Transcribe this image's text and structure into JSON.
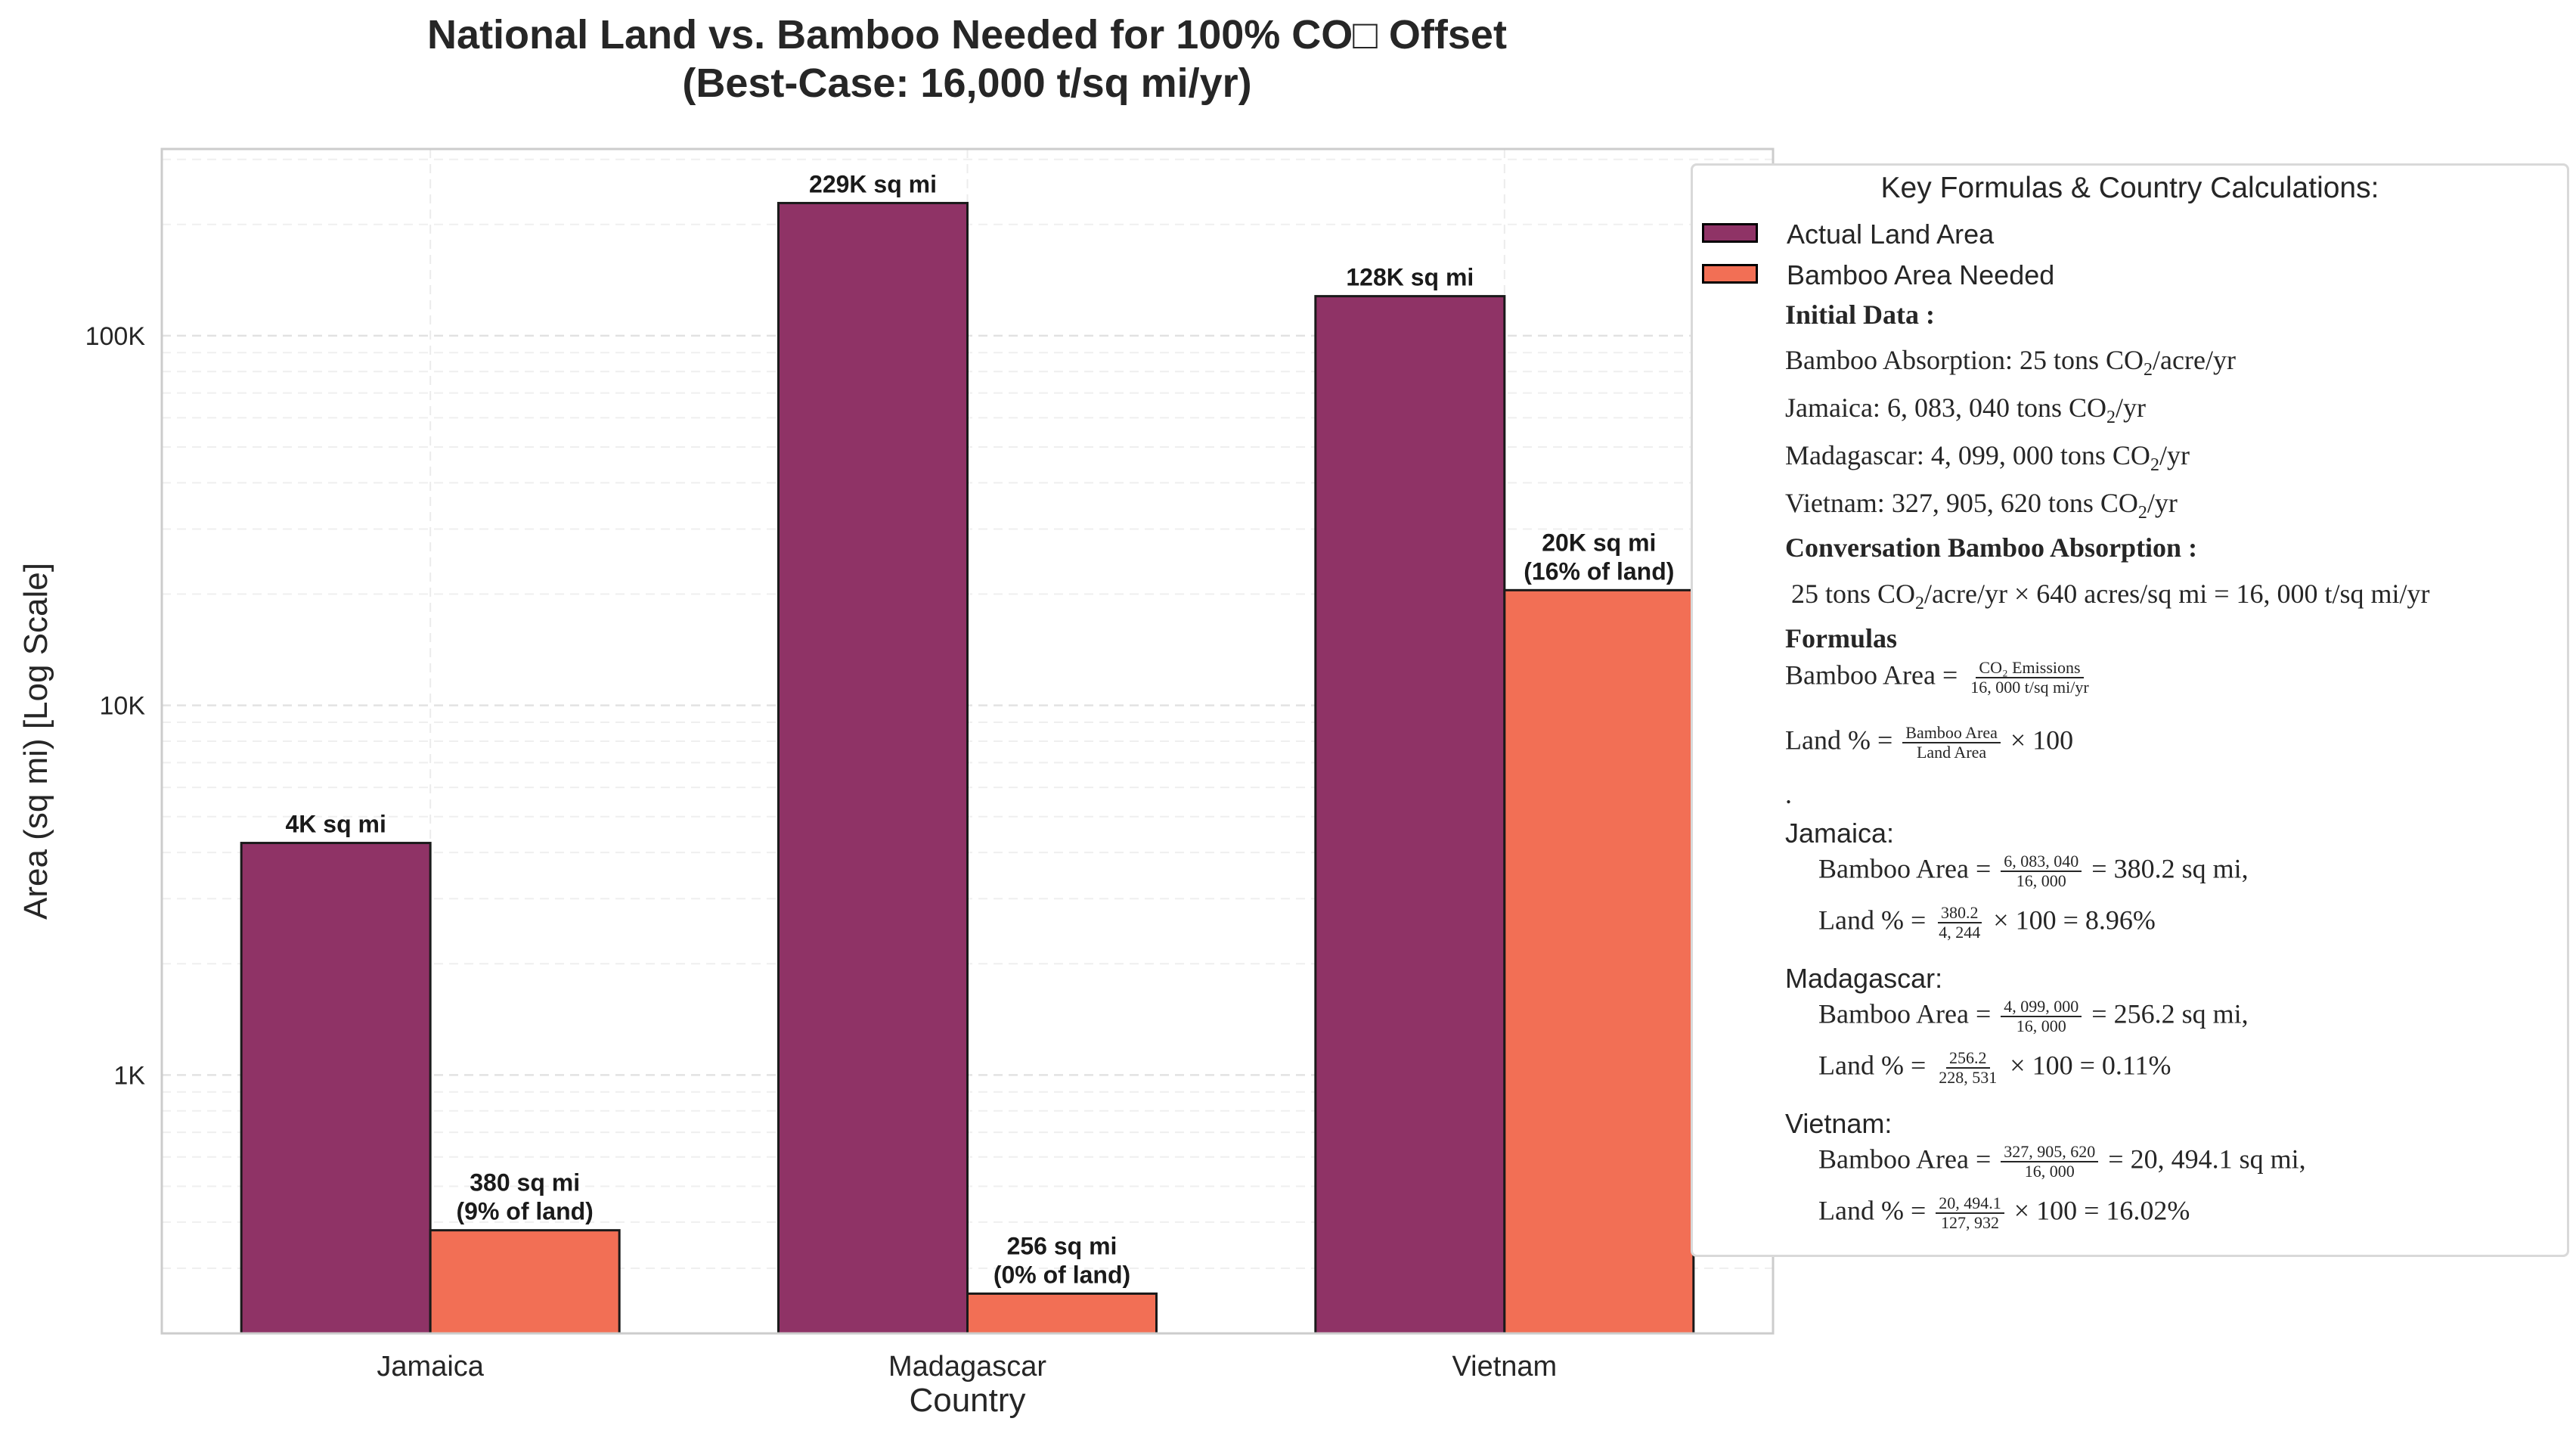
{
  "chart_data": {
    "type": "bar",
    "title": "National Land vs. Bamboo Needed for 100% CO□ Offset",
    "subtitle": "(Best-Case: 16,000 t/sq mi/yr)",
    "xlabel": "Country",
    "ylabel": "Area (sq mi) [Log Scale]",
    "yscale": "log",
    "ylim": [
      200,
      320000
    ],
    "ytick_labels": [
      "1K",
      "10K",
      "100K"
    ],
    "ytick_values": [
      1000,
      10000,
      100000
    ],
    "grid": true,
    "categories": [
      "Jamaica",
      "Madagascar",
      "Vietnam"
    ],
    "series": [
      {
        "name": "Actual Land Area",
        "color": "#8f3366",
        "values": [
          4244,
          228531,
          127932
        ],
        "labels": [
          "4K sq mi",
          "229K sq mi",
          "128K sq mi"
        ]
      },
      {
        "name": "Bamboo Area Needed",
        "color": "#f26f55",
        "values": [
          380.2,
          256.2,
          20494.1
        ],
        "labels": [
          [
            "380 sq mi",
            "(9% of land)"
          ],
          [
            "256 sq mi",
            "(0% of land)"
          ],
          [
            "20K sq mi",
            "(16% of land)"
          ]
        ]
      }
    ],
    "legend_position": "right"
  },
  "legend": {
    "title": "Key Formulas & Country Calculations:",
    "entries": [
      "Actual Land Area",
      "Bamboo Area Needed"
    ],
    "initial_data_heading": "Initial Data",
    "bamboo_absorption_label": "Bamboo Absorption:",
    "bamboo_absorption_value": "25 tons CO",
    "per_acre_yr": "/acre/yr",
    "jamaica_line_label": "Jamaica:",
    "jamaica_emissions": "6, 083, 040 tons CO",
    "madagascar_line_label": "Madagascar:",
    "madagascar_emissions": "4, 099, 000 tons CO",
    "vietnam_line_label": "Vietnam:",
    "vietnam_emissions": "327, 905, 620 tons CO",
    "per_yr": "/yr",
    "conversion_heading": "Conversation Bamboo Absorption",
    "conversion_a": "25 tons CO",
    "conversion_b": "/acre/yr × 640 acres/sq mi = 16, 000 t/sq mi/yr",
    "formulas_heading": "Formulas",
    "bamboo_area_label": "Bamboo Area =",
    "co2_emissions_num": "CO₂ Emissions",
    "co2_emissions_den": "16, 000 t/sq mi/yr",
    "land_pct_label": "Land % =",
    "land_pct_num": "Bamboo Area",
    "land_pct_den": "Land Area",
    "times_100": "× 100",
    "dot": ".",
    "jamaica_heading": "Jamaica:",
    "jamaica_bamboo_num": "6, 083, 040",
    "jamaica_bamboo_den": "16, 000",
    "jamaica_bamboo_result": "= 380.2 sq mi,",
    "jamaica_land_num": "380.2",
    "jamaica_land_den": "4, 244",
    "jamaica_land_result": "× 100 = 8.96%",
    "madagascar_heading": "Madagascar:",
    "madagascar_bamboo_num": "4, 099, 000",
    "madagascar_bamboo_den": "16, 000",
    "madagascar_bamboo_result": "= 256.2 sq mi,",
    "madagascar_land_num": "256.2",
    "madagascar_land_den": "228, 531",
    "madagascar_land_result": "× 100 = 0.11%",
    "vietnam_heading": "Vietnam:",
    "vietnam_bamboo_num": "327, 905, 620",
    "vietnam_bamboo_den": "16, 000",
    "vietnam_bamboo_result": "= 20, 494.1 sq mi,",
    "vietnam_land_num": "20, 494.1",
    "vietnam_land_den": "127, 932",
    "vietnam_land_result": "× 100 = 16.02%"
  }
}
